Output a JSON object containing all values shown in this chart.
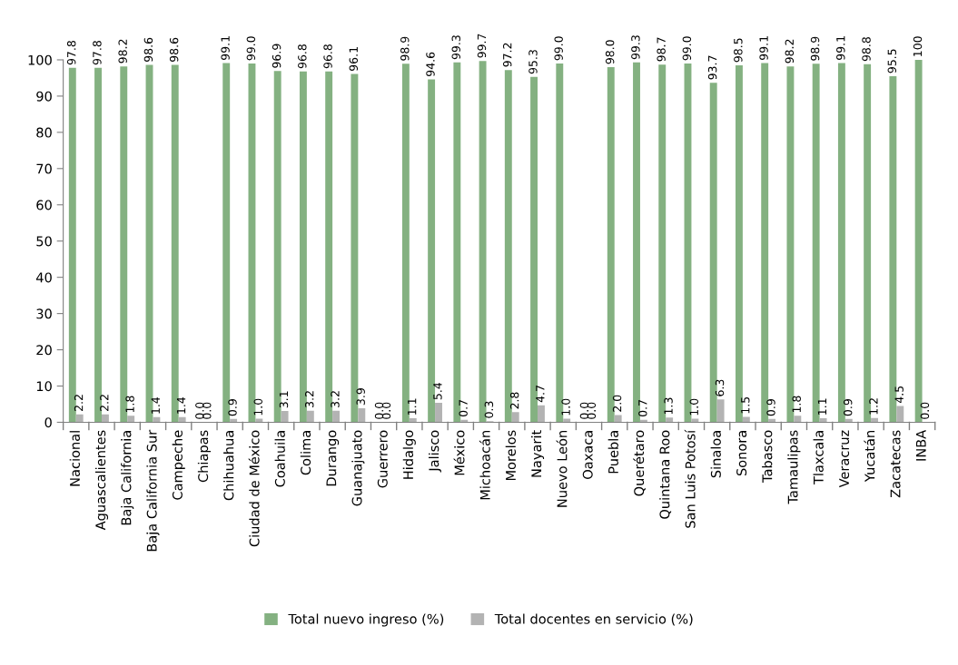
{
  "chart_data": {
    "type": "bar",
    "categories": [
      "Nacional",
      "Aguascalientes",
      "Baja California",
      "Baja California Sur",
      "Campeche",
      "Chiapas",
      "Chihuahua",
      "Ciudad de México",
      "Coahuila",
      "Colima",
      "Durango",
      "Guanajuato",
      "Guerrero",
      "Hidalgo",
      "Jalisco",
      "México",
      "Michoacán",
      "Morelos",
      "Nayarit",
      "Nuevo León",
      "Oaxaca",
      "Puebla",
      "Querétaro",
      "Quintana Roo",
      "San Luis Potosí",
      "Sinaloa",
      "Sonora",
      "Tabasco",
      "Tamaulipas",
      "Tlaxcala",
      "Veracruz",
      "Yucatán",
      "Zacatecas",
      "INBA"
    ],
    "series": [
      {
        "name": "Total nuevo ingreso (%)",
        "color": "#84b181",
        "values": [
          97.8,
          97.8,
          98.2,
          98.6,
          98.6,
          0.0,
          99.1,
          99.0,
          96.9,
          96.8,
          96.8,
          96.1,
          0.0,
          98.9,
          94.6,
          99.3,
          99.7,
          97.2,
          95.3,
          99.0,
          0.0,
          98.0,
          99.3,
          98.7,
          99.0,
          93.7,
          98.5,
          99.1,
          98.2,
          98.9,
          99.1,
          98.8,
          95.5,
          100
        ],
        "value_labels": [
          "97.8",
          "97.8",
          "98.2",
          "98.6",
          "98.6",
          "0.0",
          "99.1",
          "99.0",
          "96.9",
          "96.8",
          "96.8",
          "96.1",
          "0.0",
          "98.9",
          "94.6",
          "99.3",
          "99.7",
          "97.2",
          "95.3",
          "99.0",
          "0.0",
          "98.0",
          "99.3",
          "98.7",
          "99.0",
          "93.7",
          "98.5",
          "99.1",
          "98.2",
          "98.9",
          "99.1",
          "98.8",
          "95.5",
          "100"
        ]
      },
      {
        "name": "Total docentes en servicio (%)",
        "color": "#b3b3b3",
        "values": [
          2.2,
          2.2,
          1.8,
          1.4,
          1.4,
          0.0,
          0.9,
          1.0,
          3.1,
          3.2,
          3.2,
          3.9,
          0.0,
          1.1,
          5.4,
          0.7,
          0.3,
          2.8,
          4.7,
          1.0,
          0.0,
          2.0,
          0.7,
          1.3,
          1.0,
          6.3,
          1.5,
          0.9,
          1.8,
          1.1,
          0.9,
          1.2,
          4.5,
          0.0
        ],
        "value_labels": [
          "2.2",
          "2.2",
          "1.8",
          "1.4",
          "1.4",
          "0.0",
          "0.9",
          "1.0",
          "3.1",
          "3.2",
          "3.2",
          "3.9",
          "0.0",
          "1.1",
          "5.4",
          "0.7",
          "0.3",
          "2.8",
          "4.7",
          "1.0",
          "0.0",
          "2.0",
          "0.7",
          "1.3",
          "1.0",
          "6.3",
          "1.5",
          "0.9",
          "1.8",
          "1.1",
          "0.9",
          "1.2",
          "4.5",
          "0.0"
        ]
      }
    ],
    "ylim": [
      0,
      100
    ],
    "yticks": [
      0,
      10,
      20,
      30,
      40,
      50,
      60,
      70,
      80,
      90,
      100
    ],
    "grid": false,
    "legend": "bottom"
  }
}
